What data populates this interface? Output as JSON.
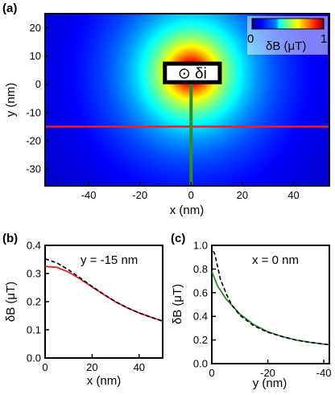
{
  "chart_data": [
    {
      "panel_label": "(a)",
      "type": "heatmap",
      "xlabel": "x (nm)",
      "ylabel": "y (nm)",
      "xlim": [
        -57,
        54
      ],
      "ylim": [
        -36,
        25
      ],
      "xticks": [
        "-40",
        "-20",
        "0",
        "20",
        "40"
      ],
      "xtick_values": [
        -40,
        -20,
        0,
        20,
        40
      ],
      "yticks": [
        "20",
        "10",
        "0",
        "-10",
        "-20",
        "-30"
      ],
      "ytick_values": [
        20,
        10,
        0,
        -10,
        -20,
        -30
      ],
      "colorbar": {
        "min_label": "0",
        "max_label": "1",
        "label": "δB (μT)",
        "colormap": "jet",
        "range": [
          0,
          1
        ]
      },
      "source_label": "⊙ δi",
      "source_rect_nm": {
        "x_min": -11,
        "x_max": 12,
        "y_min": 0,
        "y_max": 8
      },
      "field_peak_nm": {
        "x": 0,
        "y": 4
      },
      "cut_lines": [
        {
          "orientation": "horizontal",
          "y": -15,
          "color": "#e8202a"
        },
        {
          "orientation": "vertical",
          "x": 0,
          "color": "#2f8a2f"
        }
      ]
    },
    {
      "panel_label": "(b)",
      "type": "line",
      "annotation": "y = -15 nm",
      "xlabel": "x (nm)",
      "ylabel": "δB (μT)",
      "xlim": [
        0,
        50
      ],
      "ylim": [
        0,
        0.4
      ],
      "xticks": [
        "0",
        "20",
        "40"
      ],
      "xtick_values": [
        0,
        20,
        40
      ],
      "yticks": [
        "0.0",
        "0.1",
        "0.2",
        "0.3",
        "0.4"
      ],
      "ytick_values": [
        0,
        0.1,
        0.2,
        0.3,
        0.4
      ],
      "series": [
        {
          "color": "#e8202a",
          "dash": false,
          "x": [
            0,
            5,
            10,
            15,
            20,
            25,
            30,
            35,
            40,
            45,
            50
          ],
          "y": [
            0.325,
            0.322,
            0.305,
            0.28,
            0.252,
            0.225,
            0.199,
            0.178,
            0.16,
            0.145,
            0.131
          ]
        },
        {
          "color": "#000000",
          "dash": true,
          "x": [
            0,
            5,
            10,
            15,
            20,
            25,
            30,
            35,
            40,
            45,
            50
          ],
          "y": [
            0.352,
            0.338,
            0.313,
            0.284,
            0.254,
            0.226,
            0.2,
            0.178,
            0.16,
            0.145,
            0.131
          ]
        }
      ]
    },
    {
      "panel_label": "(c)",
      "type": "line",
      "annotation": "x = 0 nm",
      "xlabel": "y (nm)",
      "ylabel": "δB (μT)",
      "xlim": [
        0,
        -42
      ],
      "ylim": [
        0,
        1.0
      ],
      "xticks": [
        "0",
        "-20",
        "-40"
      ],
      "xtick_values": [
        0,
        -20,
        -40
      ],
      "yticks": [
        "0.0",
        "0.2",
        "0.4",
        "0.6",
        "0.8",
        "1.0"
      ],
      "ytick_values": [
        0,
        0.2,
        0.4,
        0.6,
        0.8,
        1.0
      ],
      "series": [
        {
          "color": "#2f8a2f",
          "dash": false,
          "x": [
            0,
            -2,
            -5,
            -10,
            -15,
            -20,
            -25,
            -30,
            -35,
            -40,
            -42
          ],
          "y": [
            0.78,
            0.66,
            0.55,
            0.42,
            0.33,
            0.27,
            0.23,
            0.2,
            0.18,
            0.165,
            0.16
          ]
        },
        {
          "color": "#000000",
          "dash": true,
          "x": [
            0.5,
            -1,
            -2,
            -3,
            -5,
            -7,
            -10,
            -15,
            -20,
            -25,
            -30,
            -35,
            -40,
            -42
          ],
          "y": [
            1.0,
            0.93,
            0.83,
            0.72,
            0.6,
            0.5,
            0.41,
            0.32,
            0.265,
            0.23,
            0.2,
            0.18,
            0.165,
            0.16
          ]
        }
      ]
    }
  ]
}
